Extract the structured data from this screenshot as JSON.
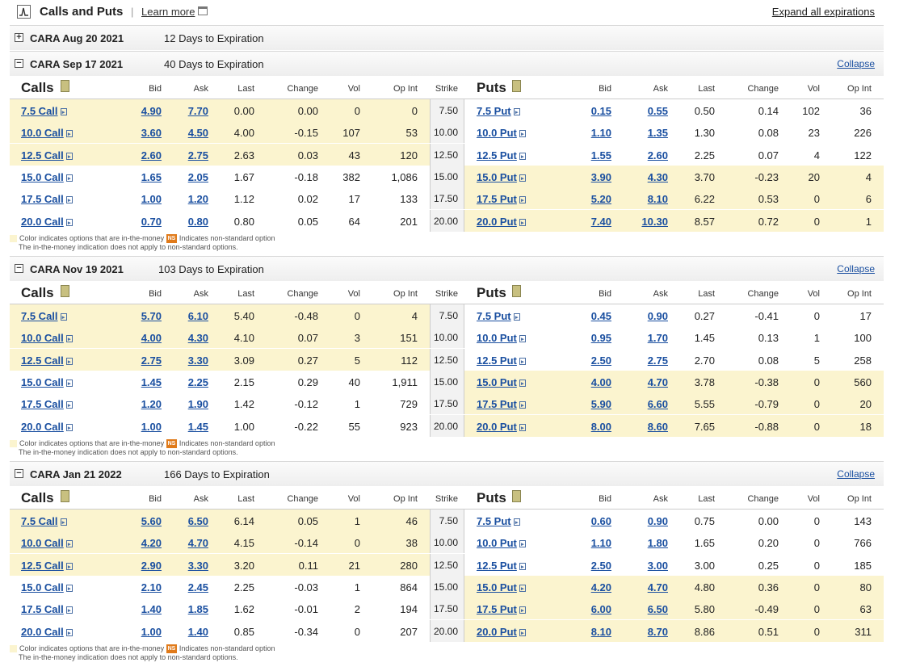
{
  "header": {
    "title": "Calls and Puts",
    "separator": "|",
    "learn_more": "Learn more",
    "expand_all": "Expand all expirations"
  },
  "columns": {
    "calls_title": "Calls",
    "puts_title": "Puts",
    "bid": "Bid",
    "ask": "Ask",
    "last": "Last",
    "change": "Change",
    "vol": "Vol",
    "opint": "Op Int",
    "strike": "Strike"
  },
  "note": {
    "itm": "Color indicates options that are in-the-money",
    "ns_badge": "NS",
    "ns": "Indicates non-standard option",
    "line2": "The in-the-money indication does not apply to non-standard options."
  },
  "expirations": [
    {
      "name": "CARA Aug 20 2021",
      "days": "12 Days to Expiration",
      "collapsed": true
    },
    {
      "name": "CARA Sep 17 2021",
      "days": "40 Days to Expiration",
      "collapse": "Collapse",
      "rows": [
        {
          "call": "7.5 Call",
          "cbid": "4.90",
          "cask": "7.70",
          "clast": "0.00",
          "cchg": "0.00",
          "cvol": "0",
          "coi": "0",
          "strike": "7.50",
          "put": "7.5 Put",
          "pbid": "0.15",
          "pask": "0.55",
          "plast": "0.50",
          "pchg": "0.14",
          "pvol": "102",
          "poi": "36",
          "call_itm": true
        },
        {
          "call": "10.0 Call",
          "cbid": "3.60",
          "cask": "4.50",
          "clast": "4.00",
          "cchg": "-0.15",
          "cvol": "107",
          "coi": "53",
          "strike": "10.00",
          "put": "10.0 Put",
          "pbid": "1.10",
          "pask": "1.35",
          "plast": "1.30",
          "pchg": "0.08",
          "pvol": "23",
          "poi": "226",
          "call_itm": true
        },
        {
          "call": "12.5 Call",
          "cbid": "2.60",
          "cask": "2.75",
          "clast": "2.63",
          "cchg": "0.03",
          "cvol": "43",
          "coi": "120",
          "strike": "12.50",
          "put": "12.5 Put",
          "pbid": "1.55",
          "pask": "2.60",
          "plast": "2.25",
          "pchg": "0.07",
          "pvol": "4",
          "poi": "122",
          "call_itm": true
        },
        {
          "call": "15.0 Call",
          "cbid": "1.65",
          "cask": "2.05",
          "clast": "1.67",
          "cchg": "-0.18",
          "cvol": "382",
          "coi": "1,086",
          "strike": "15.00",
          "put": "15.0 Put",
          "pbid": "3.90",
          "pask": "4.30",
          "plast": "3.70",
          "pchg": "-0.23",
          "pvol": "20",
          "poi": "4",
          "call_itm": false
        },
        {
          "call": "17.5 Call",
          "cbid": "1.00",
          "cask": "1.20",
          "clast": "1.12",
          "cchg": "0.02",
          "cvol": "17",
          "coi": "133",
          "strike": "17.50",
          "put": "17.5 Put",
          "pbid": "5.20",
          "pask": "8.10",
          "plast": "6.22",
          "pchg": "0.53",
          "pvol": "0",
          "poi": "6",
          "call_itm": false
        },
        {
          "call": "20.0 Call",
          "cbid": "0.70",
          "cask": "0.80",
          "clast": "0.80",
          "cchg": "0.05",
          "cvol": "64",
          "coi": "201",
          "strike": "20.00",
          "put": "20.0 Put",
          "pbid": "7.40",
          "pask": "10.30",
          "plast": "8.57",
          "pchg": "0.72",
          "pvol": "0",
          "poi": "1",
          "call_itm": false
        }
      ]
    },
    {
      "name": "CARA Nov 19 2021",
      "days": "103 Days to Expiration",
      "collapse": "Collapse",
      "rows": [
        {
          "call": "7.5 Call",
          "cbid": "5.70",
          "cask": "6.10",
          "clast": "5.40",
          "cchg": "-0.48",
          "cvol": "0",
          "coi": "4",
          "strike": "7.50",
          "put": "7.5 Put",
          "pbid": "0.45",
          "pask": "0.90",
          "plast": "0.27",
          "pchg": "-0.41",
          "pvol": "0",
          "poi": "17",
          "call_itm": true
        },
        {
          "call": "10.0 Call",
          "cbid": "4.00",
          "cask": "4.30",
          "clast": "4.10",
          "cchg": "0.07",
          "cvol": "3",
          "coi": "151",
          "strike": "10.00",
          "put": "10.0 Put",
          "pbid": "0.95",
          "pask": "1.70",
          "plast": "1.45",
          "pchg": "0.13",
          "pvol": "1",
          "poi": "100",
          "call_itm": true
        },
        {
          "call": "12.5 Call",
          "cbid": "2.75",
          "cask": "3.30",
          "clast": "3.09",
          "cchg": "0.27",
          "cvol": "5",
          "coi": "112",
          "strike": "12.50",
          "put": "12.5 Put",
          "pbid": "2.50",
          "pask": "2.75",
          "plast": "2.70",
          "pchg": "0.08",
          "pvol": "5",
          "poi": "258",
          "call_itm": true
        },
        {
          "call": "15.0 Call",
          "cbid": "1.45",
          "cask": "2.25",
          "clast": "2.15",
          "cchg": "0.29",
          "cvol": "40",
          "coi": "1,911",
          "strike": "15.00",
          "put": "15.0 Put",
          "pbid": "4.00",
          "pask": "4.70",
          "plast": "3.78",
          "pchg": "-0.38",
          "pvol": "0",
          "poi": "560",
          "call_itm": false
        },
        {
          "call": "17.5 Call",
          "cbid": "1.20",
          "cask": "1.90",
          "clast": "1.42",
          "cchg": "-0.12",
          "cvol": "1",
          "coi": "729",
          "strike": "17.50",
          "put": "17.5 Put",
          "pbid": "5.90",
          "pask": "6.60",
          "plast": "5.55",
          "pchg": "-0.79",
          "pvol": "0",
          "poi": "20",
          "call_itm": false
        },
        {
          "call": "20.0 Call",
          "cbid": "1.00",
          "cask": "1.45",
          "clast": "1.00",
          "cchg": "-0.22",
          "cvol": "55",
          "coi": "923",
          "strike": "20.00",
          "put": "20.0 Put",
          "pbid": "8.00",
          "pask": "8.60",
          "plast": "7.65",
          "pchg": "-0.88",
          "pvol": "0",
          "poi": "18",
          "call_itm": false
        }
      ]
    },
    {
      "name": "CARA Jan 21 2022",
      "days": "166 Days to Expiration",
      "collapse": "Collapse",
      "rows": [
        {
          "call": "7.5 Call",
          "cbid": "5.60",
          "cask": "6.50",
          "clast": "6.14",
          "cchg": "0.05",
          "cvol": "1",
          "coi": "46",
          "strike": "7.50",
          "put": "7.5 Put",
          "pbid": "0.60",
          "pask": "0.90",
          "plast": "0.75",
          "pchg": "0.00",
          "pvol": "0",
          "poi": "143",
          "call_itm": true
        },
        {
          "call": "10.0 Call",
          "cbid": "4.20",
          "cask": "4.70",
          "clast": "4.15",
          "cchg": "-0.14",
          "cvol": "0",
          "coi": "38",
          "strike": "10.00",
          "put": "10.0 Put",
          "pbid": "1.10",
          "pask": "1.80",
          "plast": "1.65",
          "pchg": "0.20",
          "pvol": "0",
          "poi": "766",
          "call_itm": true
        },
        {
          "call": "12.5 Call",
          "cbid": "2.90",
          "cask": "3.30",
          "clast": "3.20",
          "cchg": "0.11",
          "cvol": "21",
          "coi": "280",
          "strike": "12.50",
          "put": "12.5 Put",
          "pbid": "2.50",
          "pask": "3.00",
          "plast": "3.00",
          "pchg": "0.25",
          "pvol": "0",
          "poi": "185",
          "call_itm": true
        },
        {
          "call": "15.0 Call",
          "cbid": "2.10",
          "cask": "2.45",
          "clast": "2.25",
          "cchg": "-0.03",
          "cvol": "1",
          "coi": "864",
          "strike": "15.00",
          "put": "15.0 Put",
          "pbid": "4.20",
          "pask": "4.70",
          "plast": "4.80",
          "pchg": "0.36",
          "pvol": "0",
          "poi": "80",
          "call_itm": false
        },
        {
          "call": "17.5 Call",
          "cbid": "1.40",
          "cask": "1.85",
          "clast": "1.62",
          "cchg": "-0.01",
          "cvol": "2",
          "coi": "194",
          "strike": "17.50",
          "put": "17.5 Put",
          "pbid": "6.00",
          "pask": "6.50",
          "plast": "5.80",
          "pchg": "-0.49",
          "pvol": "0",
          "poi": "63",
          "call_itm": false
        },
        {
          "call": "20.0 Call",
          "cbid": "1.00",
          "cask": "1.40",
          "clast": "0.85",
          "cchg": "-0.34",
          "cvol": "0",
          "coi": "207",
          "strike": "20.00",
          "put": "20.0 Put",
          "pbid": "8.10",
          "pask": "8.70",
          "plast": "8.86",
          "pchg": "0.51",
          "pvol": "0",
          "poi": "311",
          "call_itm": false
        }
      ]
    }
  ]
}
